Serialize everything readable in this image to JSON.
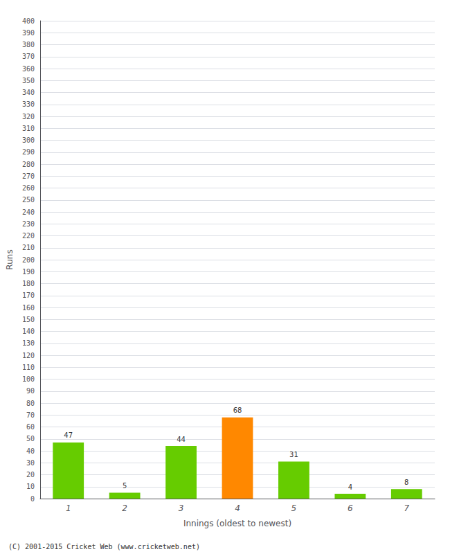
{
  "chart_data": {
    "type": "bar",
    "xlabel": "Innings (oldest to newest)",
    "ylabel": "Runs",
    "categories": [
      "1",
      "2",
      "3",
      "4",
      "5",
      "6",
      "7"
    ],
    "values": [
      47,
      5,
      44,
      68,
      31,
      4,
      8
    ],
    "colors": [
      "#66cc00",
      "#66cc00",
      "#66cc00",
      "#ff8800",
      "#66cc00",
      "#66cc00",
      "#66cc00"
    ],
    "ylim": [
      0,
      400
    ],
    "yticks": [
      0,
      10,
      20,
      30,
      40,
      50,
      60,
      70,
      80,
      90,
      100,
      110,
      120,
      130,
      140,
      150,
      160,
      170,
      180,
      190,
      200,
      210,
      220,
      230,
      240,
      250,
      260,
      270,
      280,
      290,
      300,
      310,
      320,
      330,
      340,
      350,
      360,
      370,
      380,
      390,
      400
    ],
    "grid": true,
    "data_labels": true,
    "annotations": [
      "(C) 2001-2015 Cricket Web (www.cricketweb.net)"
    ]
  }
}
